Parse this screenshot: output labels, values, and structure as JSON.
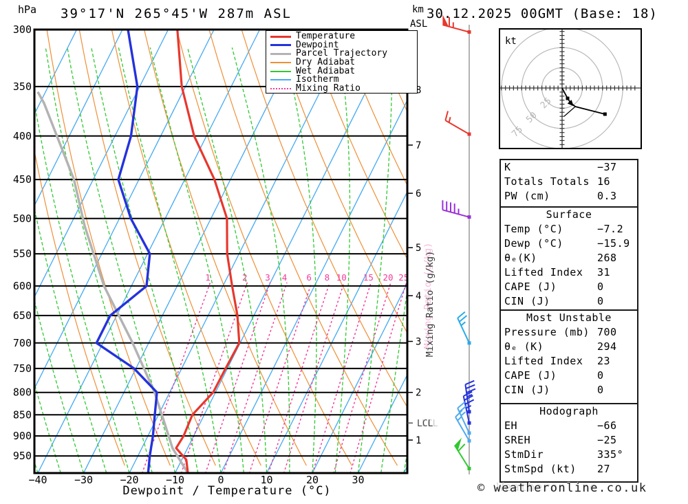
{
  "title": "39°17'N 265°45'W 287m ASL",
  "date_label": "30.12.2025 00GMT (Base: 18)",
  "copyright": "© weatheronline.co.uk",
  "copyright_ghost": "Weatheronline",
  "axes": {
    "pressure_unit": "hPa",
    "pressure_ticks": [
      300,
      350,
      400,
      450,
      500,
      550,
      600,
      650,
      700,
      750,
      800,
      850,
      900,
      950
    ],
    "temp_label": "Dewpoint / Temperature (°C)",
    "temp_ticks": [
      "−40",
      "−30",
      "−20",
      "−10",
      "0",
      "10",
      "20",
      "30"
    ],
    "temp_tick_values": [
      -40,
      -30,
      -20,
      -10,
      0,
      10,
      20,
      30
    ],
    "km_label_1": "km",
    "km_label_2": "ASL",
    "mixing_label": "Mixing Ratio (g/kg)",
    "lcl_label": "LCL"
  },
  "legend": [
    {
      "label": "Temperature",
      "color": "#e8372d",
      "style": "solid",
      "weight": 3
    },
    {
      "label": "Dewpoint",
      "color": "#2432dc",
      "style": "solid",
      "weight": 3
    },
    {
      "label": "Parcel Trajectory",
      "color": "#b3b3b3",
      "style": "solid",
      "weight": 3
    },
    {
      "label": "Dry Adiabat",
      "color": "#ef8f35",
      "style": "solid",
      "weight": 2
    },
    {
      "label": "Wet Adiabat",
      "color": "#2fc92f",
      "style": "solid",
      "weight": 2
    },
    {
      "label": "Isotherm",
      "color": "#45aaf2",
      "style": "solid",
      "weight": 2
    },
    {
      "label": "Mixing Ratio",
      "color": "#f4399b",
      "style": "dotted",
      "weight": 2
    }
  ],
  "chart_data": {
    "type": "line",
    "subtype": "skew-t log-p sounding",
    "pressure_top_hpa": 300,
    "pressure_bottom_hpa": 995,
    "isobars_hpa": [
      350,
      400,
      450,
      500,
      550,
      600,
      650,
      700,
      750,
      800,
      850,
      900,
      950
    ],
    "isotherm_step_c": 10,
    "dry_adiabat_step_c": 10,
    "wet_adiabat_step_c": 5,
    "mixing_ratio_g_kg": [
      1,
      2,
      3,
      4,
      6,
      8,
      10,
      15,
      20,
      25
    ],
    "series": {
      "temperature_c_by_hpa": [
        [
          995,
          -7.2
        ],
        [
          960,
          -9.0
        ],
        [
          930,
          -12.5
        ],
        [
          900,
          -12.2
        ],
        [
          850,
          -12.6
        ],
        [
          800,
          -10.5
        ],
        [
          750,
          -10.4
        ],
        [
          700,
          -10.2
        ],
        [
          650,
          -13.6
        ],
        [
          600,
          -18.0
        ],
        [
          550,
          -22.6
        ],
        [
          500,
          -26.5
        ],
        [
          450,
          -33.5
        ],
        [
          400,
          -42.7
        ],
        [
          350,
          -50.8
        ],
        [
          300,
          -58.0
        ]
      ],
      "dewpoint_c_by_hpa": [
        [
          995,
          -15.9
        ],
        [
          950,
          -17.4
        ],
        [
          900,
          -18.9
        ],
        [
          850,
          -20.8
        ],
        [
          800,
          -22.8
        ],
        [
          750,
          -30.4
        ],
        [
          700,
          -41.4
        ],
        [
          650,
          -41.4
        ],
        [
          600,
          -36.7
        ],
        [
          550,
          -39.5
        ],
        [
          500,
          -47.5
        ],
        [
          450,
          -54.5
        ],
        [
          400,
          -56.5
        ],
        [
          350,
          -60.5
        ],
        [
          300,
          -68.8
        ]
      ],
      "parcel_c_by_hpa": [
        [
          995,
          -7.2
        ],
        [
          930,
          -13.3
        ],
        [
          869,
          -17.8
        ],
        [
          800,
          -23.3
        ],
        [
          700,
          -33.5
        ],
        [
          600,
          -46.0
        ],
        [
          510,
          -56.8
        ],
        [
          450,
          -64.2
        ],
        [
          366,
          -79.1
        ],
        [
          355,
          -81.7
        ]
      ]
    },
    "km_asl_ticks": [
      {
        "km": 1,
        "hpa": 910
      },
      {
        "km": 2,
        "hpa": 800
      },
      {
        "km": 3,
        "hpa": 697
      },
      {
        "km": 4,
        "hpa": 616
      },
      {
        "km": 5,
        "hpa": 541
      },
      {
        "km": 6,
        "hpa": 467
      },
      {
        "km": 7,
        "hpa": 410
      },
      {
        "km": 8,
        "hpa": 353
      }
    ],
    "lcl_hpa": 869,
    "wind_barbs": [
      {
        "hpa": 302,
        "dir_deg": 285,
        "speed_kt": 65,
        "color": "#e8372d"
      },
      {
        "hpa": 398,
        "dir_deg": 300,
        "speed_kt": 15,
        "color": "#e8372d"
      },
      {
        "hpa": 498,
        "dir_deg": 285,
        "speed_kt": 45,
        "color": "#9a30d8"
      },
      {
        "hpa": 700,
        "dir_deg": 335,
        "speed_kt": 25,
        "color": "#29abe8"
      },
      {
        "hpa": 843,
        "dir_deg": 352,
        "speed_kt": 35,
        "color": "#2432dc"
      },
      {
        "hpa": 869,
        "dir_deg": 348,
        "speed_kt": 35,
        "color": "#2432dc"
      },
      {
        "hpa": 893,
        "dir_deg": 335,
        "speed_kt": 25,
        "color": "#4fa9ee"
      },
      {
        "hpa": 912,
        "dir_deg": 330,
        "speed_kt": 15,
        "color": "#4fa9ee"
      },
      {
        "hpa": 983,
        "dir_deg": 328,
        "speed_kt": 60,
        "color": "#2fc92f"
      }
    ],
    "hodograph": {
      "unit": "kt",
      "rings_kt": [
        25,
        50,
        75
      ],
      "ring_labels": [
        "25",
        "50",
        "75"
      ],
      "trace_kt_u_vdown": [
        [
          0,
          0
        ],
        [
          6.8,
          12.8
        ],
        [
          10.8,
          18.7
        ],
        [
          16.3,
          23.0
        ],
        [
          53.0,
          32.3
        ]
      ],
      "branch_kt_u_vdown": [
        [
          16.3,
          23.0
        ],
        [
          2.6,
          34.9
        ]
      ],
      "marker_indices": [
        1,
        4
      ],
      "arrow_index": 2
    }
  },
  "tables": [
    {
      "header": "",
      "rows": [
        [
          "K",
          "−37"
        ],
        [
          "Totals Totals",
          "16"
        ],
        [
          "PW (cm)",
          "0.3"
        ]
      ]
    },
    {
      "header": "Surface",
      "rows": [
        [
          "Temp (°C)",
          "−7.2"
        ],
        [
          "Dewp (°C)",
          "−15.9"
        ],
        [
          "θₑ(K)",
          "268"
        ],
        [
          "Lifted Index",
          "31"
        ],
        [
          "CAPE (J)",
          "0"
        ],
        [
          "CIN (J)",
          "0"
        ]
      ]
    },
    {
      "header": "Most Unstable",
      "rows": [
        [
          "Pressure (mb)",
          "700"
        ],
        [
          "θₑ (K)",
          "294"
        ],
        [
          "Lifted Index",
          "23"
        ],
        [
          "CAPE (J)",
          "0"
        ],
        [
          "CIN (J)",
          "0"
        ]
      ]
    },
    {
      "header": "Hodograph",
      "rows": [
        [
          "EH",
          "−66"
        ],
        [
          "SREH",
          "−25"
        ],
        [
          "StmDir",
          "335°"
        ],
        [
          "StmSpd (kt)",
          "27"
        ]
      ]
    }
  ],
  "colors": {
    "temperature": "#e8372d",
    "dewpoint": "#2432dc",
    "parcel": "#b3b3b3",
    "dry_adiabat": "#ef8f35",
    "wet_adiabat": "#2fc92f",
    "isotherm": "#45aaf2",
    "mixing_ratio": "#f4399b",
    "staff": "#999999",
    "ghost_pink": "#f7b9d9",
    "hodo_ring": "#b8b8b8",
    "axis_text": "#000000"
  }
}
